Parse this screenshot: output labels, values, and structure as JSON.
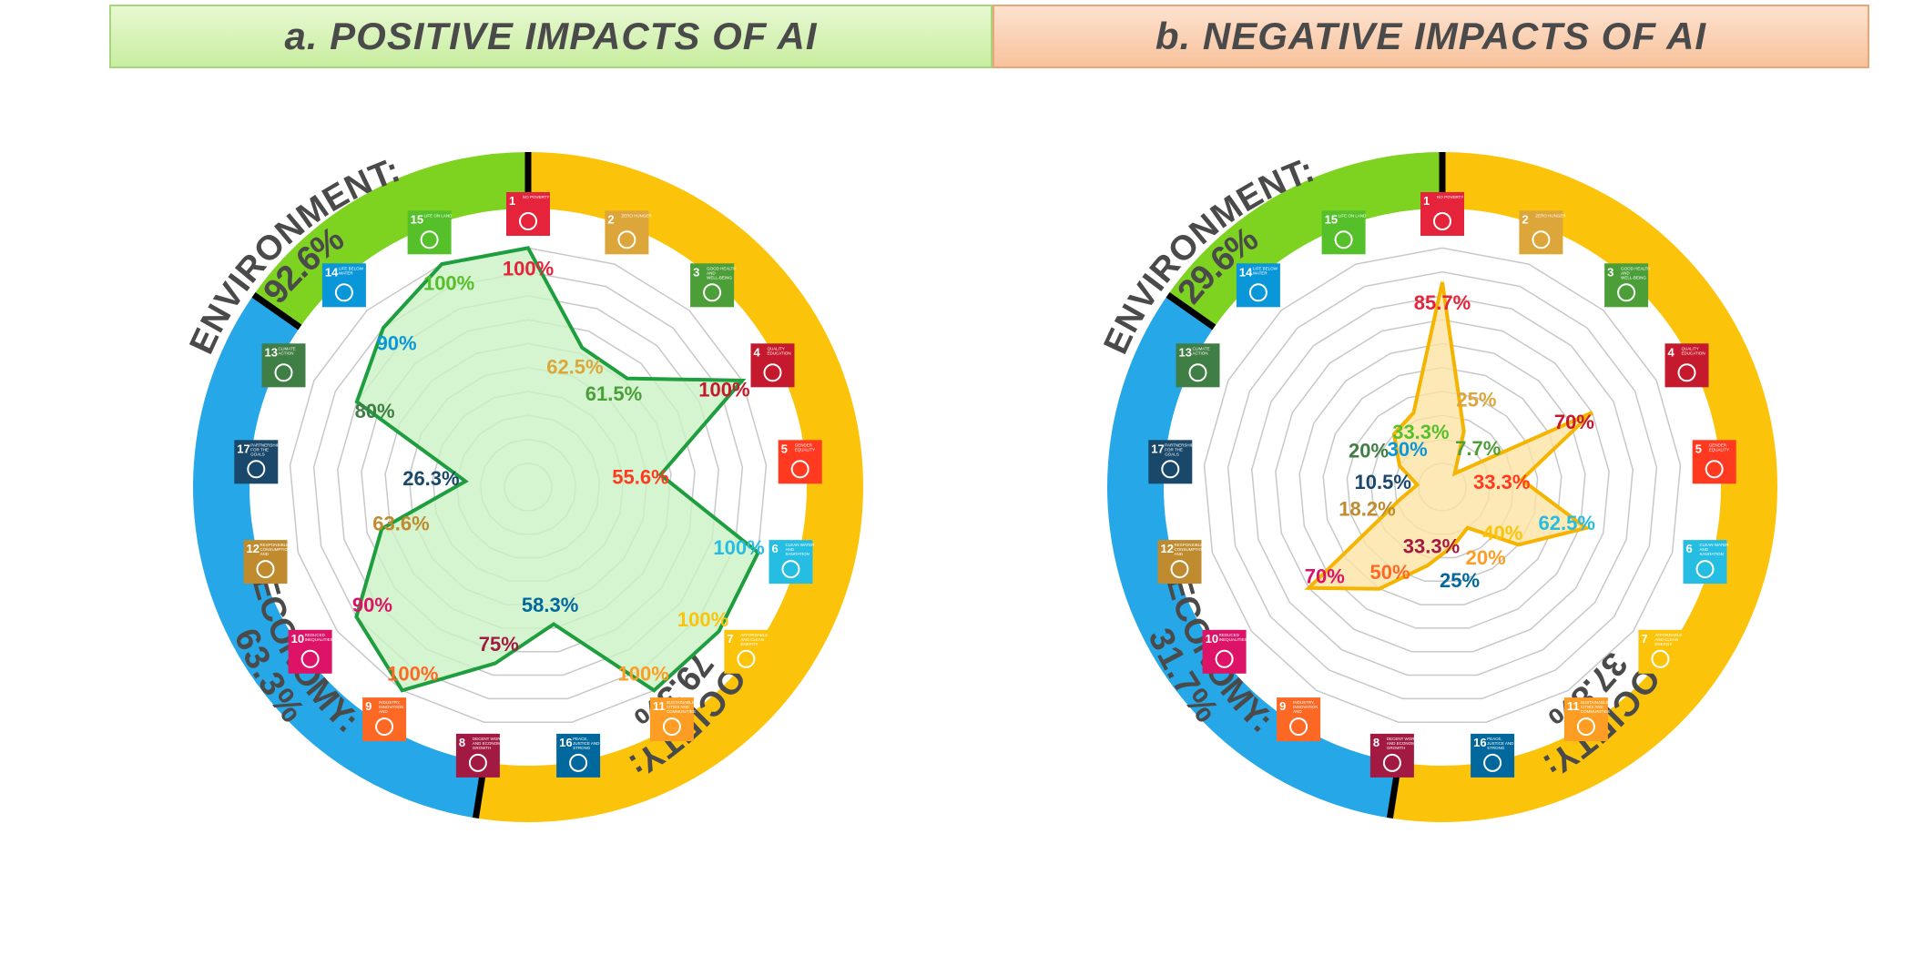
{
  "headers": {
    "a": "a. POSITIVE IMPACTS OF AI",
    "b": "b. NEGATIVE IMPACTS OF AI"
  },
  "colors": {
    "environment": "#7ed321",
    "society": "#fcc30b",
    "economy": "#26a7e8",
    "positive_line": "#1e9e3e",
    "positive_fill": "#c9f2c3",
    "negative_line": "#f5b400",
    "negative_fill": "#fde3a2"
  },
  "sdg_icons": [
    {
      "num": "1",
      "label": "NO POVERTY",
      "color": "#e5243b"
    },
    {
      "num": "2",
      "label": "ZERO HUNGER",
      "color": "#dda63a"
    },
    {
      "num": "3",
      "label": "GOOD HEALTH AND WELL-BEING",
      "color": "#4c9f38"
    },
    {
      "num": "4",
      "label": "QUALITY EDUCATION",
      "color": "#c5192d"
    },
    {
      "num": "5",
      "label": "GENDER EQUALITY",
      "color": "#ff3a21"
    },
    {
      "num": "6",
      "label": "CLEAN WATER AND SANITATION",
      "color": "#26bde2"
    },
    {
      "num": "7",
      "label": "AFFORDABLE AND CLEAN ENERGY",
      "color": "#fcc30b"
    },
    {
      "num": "11",
      "label": "SUSTAINABLE CITIES AND COMMUNITIES",
      "color": "#fd9d24"
    },
    {
      "num": "16",
      "label": "PEACE, JUSTICE AND STRONG INSTITUTIONS",
      "color": "#00689d"
    },
    {
      "num": "8",
      "label": "DECENT WORK AND ECONOMIC GROWTH",
      "color": "#a21942"
    },
    {
      "num": "9",
      "label": "INDUSTRY, INNOVATION AND INFRASTRUCTURE",
      "color": "#fd6925"
    },
    {
      "num": "10",
      "label": "REDUCED INEQUALITIES",
      "color": "#dd1367"
    },
    {
      "num": "12",
      "label": "RESPONSIBLE CONSUMPTION AND PRODUCTION",
      "color": "#bf8b2e"
    },
    {
      "num": "17",
      "label": "PARTNERSHIPS FOR THE GOALS",
      "color": "#19486a"
    },
    {
      "num": "13",
      "label": "CLIMATE ACTION",
      "color": "#3f7e44"
    },
    {
      "num": "14",
      "label": "LIFE BELOW WATER",
      "color": "#0a97d9"
    },
    {
      "num": "15",
      "label": "LIFE ON LAND",
      "color": "#56c02b"
    }
  ],
  "chart_data": [
    {
      "type": "radar",
      "title": "a. POSITIVE IMPACTS OF AI",
      "categories": [
        "SDG 1",
        "SDG 2",
        "SDG 3",
        "SDG 4",
        "SDG 5",
        "SDG 6",
        "SDG 7",
        "SDG 11",
        "SDG 16",
        "SDG 8",
        "SDG 9",
        "SDG 10",
        "SDG 12",
        "SDG 17",
        "SDG 13",
        "SDG 14",
        "SDG 15"
      ],
      "values": [
        100,
        62.5,
        61.5,
        100,
        55.6,
        100,
        100,
        100,
        58.3,
        75,
        100,
        90,
        63.6,
        26.3,
        80,
        90,
        100
      ],
      "value_labels": [
        "100%",
        "62.5%",
        "61.5%",
        "100%",
        "55.6%",
        "100%",
        "100%",
        "100%",
        "58.3%",
        "75%",
        "100%",
        "90%",
        "63.6%",
        "26.3%",
        "80%",
        "90%",
        "100%"
      ],
      "rlim": [
        0,
        100
      ],
      "groups": [
        {
          "name": "SOCIETY",
          "value": 79.3,
          "label": "SOCIETY:",
          "pct": "79.3%"
        },
        {
          "name": "ECONOMY",
          "value": 63.3,
          "label": "ECONOMY:",
          "pct": "63.3%"
        },
        {
          "name": "ENVIRONMENT",
          "value": 92.6,
          "label": "ENVIRONMENT:",
          "pct": "92.6%"
        }
      ]
    },
    {
      "type": "radar",
      "title": "b. NEGATIVE IMPACTS OF AI",
      "categories": [
        "SDG 1",
        "SDG 2",
        "SDG 3",
        "SDG 4",
        "SDG 5",
        "SDG 6",
        "SDG 7",
        "SDG 11",
        "SDG 16",
        "SDG 8",
        "SDG 9",
        "SDG 10",
        "SDG 12",
        "SDG 17",
        "SDG 13",
        "SDG 14",
        "SDG 15"
      ],
      "values": [
        85.7,
        25,
        7.7,
        70,
        33.3,
        62.5,
        40,
        20,
        25,
        33.3,
        50,
        70,
        18.2,
        10.5,
        20,
        30,
        33.3
      ],
      "value_labels": [
        "85.7%",
        "25%",
        "7.7%",
        "70%",
        "33.3%",
        "62.5%",
        "40%",
        "20%",
        "25%",
        "33.3%",
        "50%",
        "70%",
        "18.2%",
        "10.5%",
        "20%",
        "30%",
        "33.3%"
      ],
      "rlim": [
        0,
        100
      ],
      "groups": [
        {
          "name": "SOCIETY",
          "value": 37.8,
          "label": "SOCIETY:",
          "pct": "37.8%"
        },
        {
          "name": "ECONOMY",
          "value": 31.7,
          "label": "ECONOMY:",
          "pct": "31.7%"
        },
        {
          "name": "ENVIRONMENT",
          "value": 29.6,
          "label": "ENVIRONMENT:",
          "pct": "29.6%"
        }
      ]
    }
  ]
}
